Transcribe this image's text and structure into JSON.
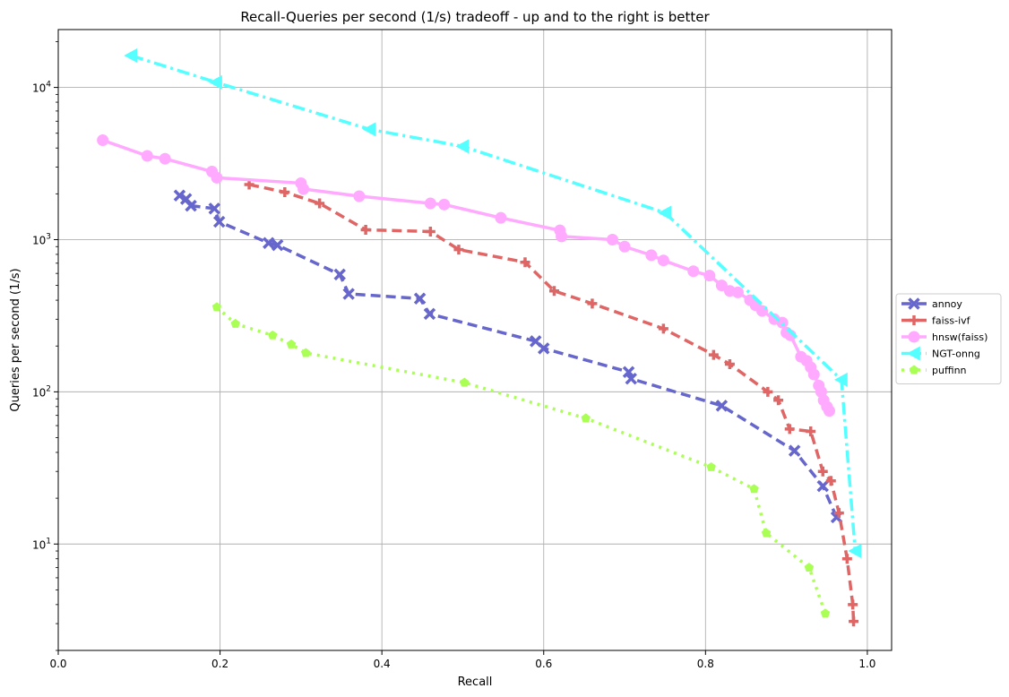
{
  "chart_data": {
    "type": "line",
    "title": "Recall-Queries per second (1/s) tradeoff - up and to the right is better",
    "xlabel": "Recall",
    "ylabel": "Queries per second (1/s)",
    "xlim": [
      0.0,
      1.03
    ],
    "ylim": [
      2.0,
      24000
    ],
    "yscale": "log",
    "grid": true,
    "legend_position": "right-outside",
    "x_ticks": [
      0.0,
      0.2,
      0.4,
      0.6,
      0.8,
      1.0
    ],
    "x_tick_labels": [
      "0.0",
      "0.2",
      "0.4",
      "0.6",
      "0.8",
      "1.0"
    ],
    "y_ticks": [
      10,
      100,
      1000,
      10000
    ],
    "y_tick_labels": [
      "10^1",
      "10^2",
      "10^3",
      "10^4"
    ],
    "series": [
      {
        "name": "annoy",
        "color": "#6666cc",
        "marker": "x-thick",
        "linestyle": "dashed",
        "x": [
          0.15,
          0.158,
          0.164,
          0.193,
          0.199,
          0.26,
          0.271,
          0.348,
          0.359,
          0.447,
          0.459,
          0.59,
          0.6,
          0.705,
          0.708,
          0.82,
          0.91,
          0.945,
          0.962
        ],
        "y": [
          1950,
          1850,
          1670,
          1600,
          1310,
          950,
          920,
          590,
          440,
          410,
          325,
          215,
          193,
          135,
          122,
          81,
          41,
          24,
          15
        ]
      },
      {
        "name": "faiss-ivf",
        "color": "#e06666",
        "marker": "plus-thick",
        "linestyle": "dashed",
        "x": [
          0.236,
          0.28,
          0.323,
          0.38,
          0.46,
          0.495,
          0.577,
          0.613,
          0.66,
          0.748,
          0.81,
          0.83,
          0.877,
          0.89,
          0.904,
          0.93,
          0.945,
          0.955,
          0.965,
          0.975,
          0.982,
          0.983
        ],
        "y": [
          2300,
          2050,
          1730,
          1160,
          1130,
          860,
          710,
          460,
          380,
          260,
          175,
          152,
          100,
          88,
          57,
          55,
          30,
          26,
          16,
          8,
          4,
          3.1
        ]
      },
      {
        "name": "hnsw(faiss)",
        "color": "#ffaaff",
        "marker": "circle",
        "linestyle": "solid",
        "x": [
          0.055,
          0.11,
          0.132,
          0.19,
          0.196,
          0.3,
          0.303,
          0.372,
          0.46,
          0.477,
          0.547,
          0.62,
          0.622,
          0.685,
          0.7,
          0.733,
          0.748,
          0.785,
          0.805,
          0.82,
          0.83,
          0.84,
          0.855,
          0.862,
          0.87,
          0.885,
          0.895,
          0.9,
          0.905,
          0.918,
          0.925,
          0.93,
          0.934,
          0.94,
          0.943,
          0.946,
          0.95,
          0.953
        ],
        "y": [
          4500,
          3550,
          3400,
          2800,
          2550,
          2350,
          2150,
          1930,
          1730,
          1700,
          1390,
          1150,
          1050,
          1000,
          900,
          790,
          730,
          620,
          580,
          500,
          460,
          450,
          400,
          370,
          340,
          300,
          285,
          245,
          235,
          170,
          160,
          145,
          130,
          110,
          100,
          88,
          80,
          75
        ]
      },
      {
        "name": "NGT-onng",
        "color": "#55ffff",
        "marker": "triangle-left",
        "linestyle": "dashdot",
        "x": [
          0.09,
          0.195,
          0.385,
          0.5,
          0.75,
          0.968,
          0.985
        ],
        "y": [
          16200,
          10800,
          5300,
          4100,
          1500,
          120,
          9
        ]
      },
      {
        "name": "puffinn",
        "color": "#aaff55",
        "marker": "pentagon",
        "linestyle": "dotted",
        "x": [
          0.196,
          0.219,
          0.265,
          0.288,
          0.306,
          0.502,
          0.652,
          0.807,
          0.86,
          0.875,
          0.928,
          0.948
        ],
        "y": [
          360,
          280,
          235,
          205,
          180,
          115,
          67,
          32,
          23,
          11.8,
          7,
          3.5
        ]
      }
    ]
  }
}
